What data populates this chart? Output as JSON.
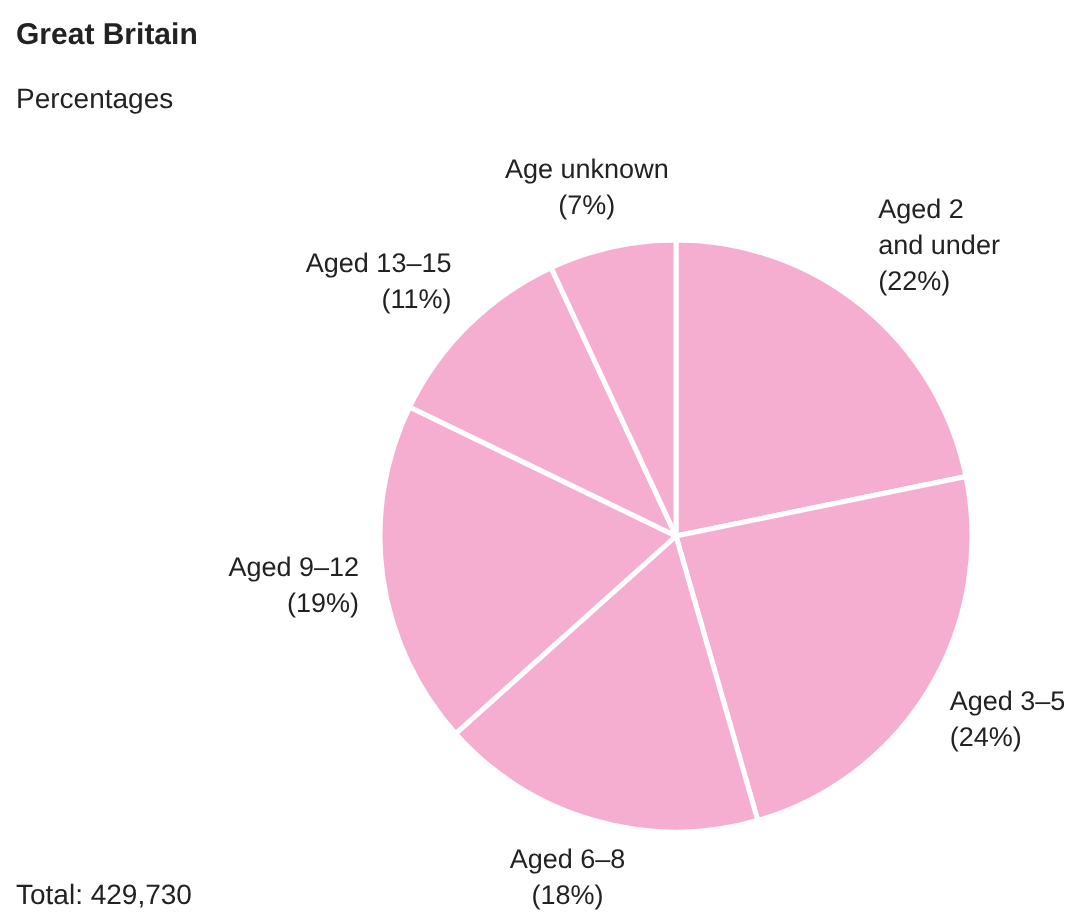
{
  "chart_data": {
    "type": "pie",
    "title": "Great Britain",
    "subtitle": "Percentages",
    "categories": [
      "Aged 2\nand under",
      "Aged 3–5",
      "Aged 6–8",
      "Aged 9–12",
      "Aged 13–15",
      "Age unknown"
    ],
    "values": [
      22,
      24,
      18,
      19,
      11,
      7
    ],
    "colors": [
      "#f5add0",
      "#f5add0",
      "#f5add0",
      "#f5add0",
      "#f5add0",
      "#f5add0"
    ],
    "value_labels": [
      "(22%)",
      "(24%)",
      "(18%)",
      "(19%)",
      "(11%)",
      "(7%)"
    ],
    "annotations": [
      "Total: 429,730"
    ]
  }
}
